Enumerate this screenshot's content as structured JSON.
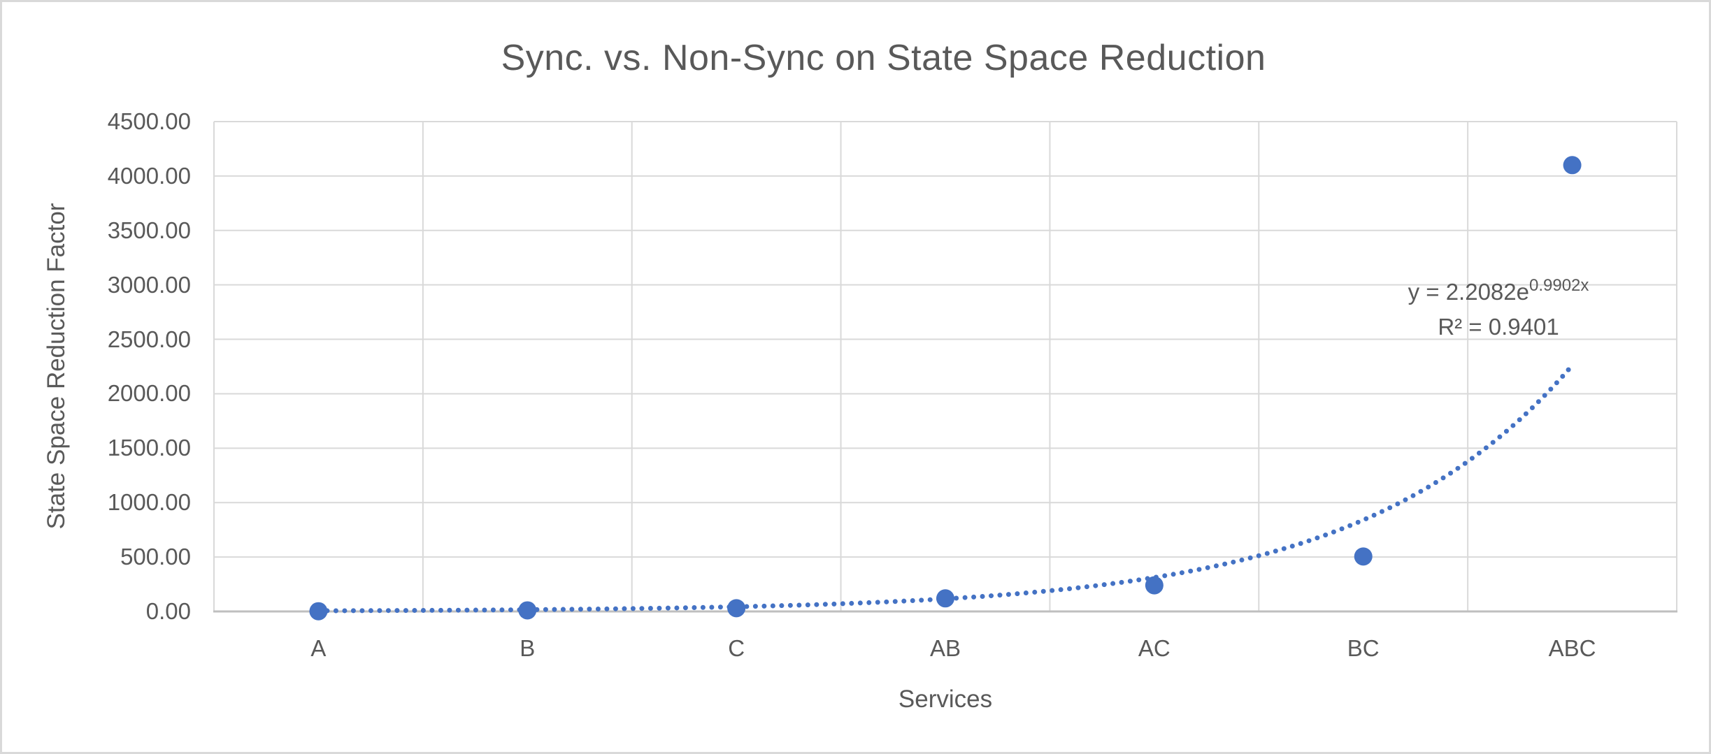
{
  "chart_data": {
    "type": "scatter",
    "title": "Sync. vs. Non-Sync on State Space Reduction",
    "xlabel": "Services",
    "ylabel": "State Space Reduction Factor",
    "categories": [
      "A",
      "B",
      "C",
      "AB",
      "AC",
      "BC",
      "ABC"
    ],
    "values": [
      2,
      10,
      30,
      120,
      240,
      505,
      4100
    ],
    "ylim": [
      0,
      4500
    ],
    "ytick_step": 500,
    "ytick_labels": [
      "4500.00",
      "4000.00",
      "3500.00",
      "3000.00",
      "2500.00",
      "2000.00",
      "1500.00",
      "1000.00",
      "500.00",
      "0.00"
    ],
    "grid": true,
    "legend": "none",
    "trendline": {
      "type": "exponential",
      "a": 2.2082,
      "b": 0.9902,
      "equation_base": "y = 2.2082e",
      "equation_exponent": "0.9902x",
      "r_squared_label": "R² = 0.9401"
    },
    "colors": {
      "marker": "#4472C4",
      "trendline": "#4472C4",
      "text": "#595959",
      "gridline": "#D9D9D9",
      "axis_line": "#BFBFBF"
    }
  }
}
